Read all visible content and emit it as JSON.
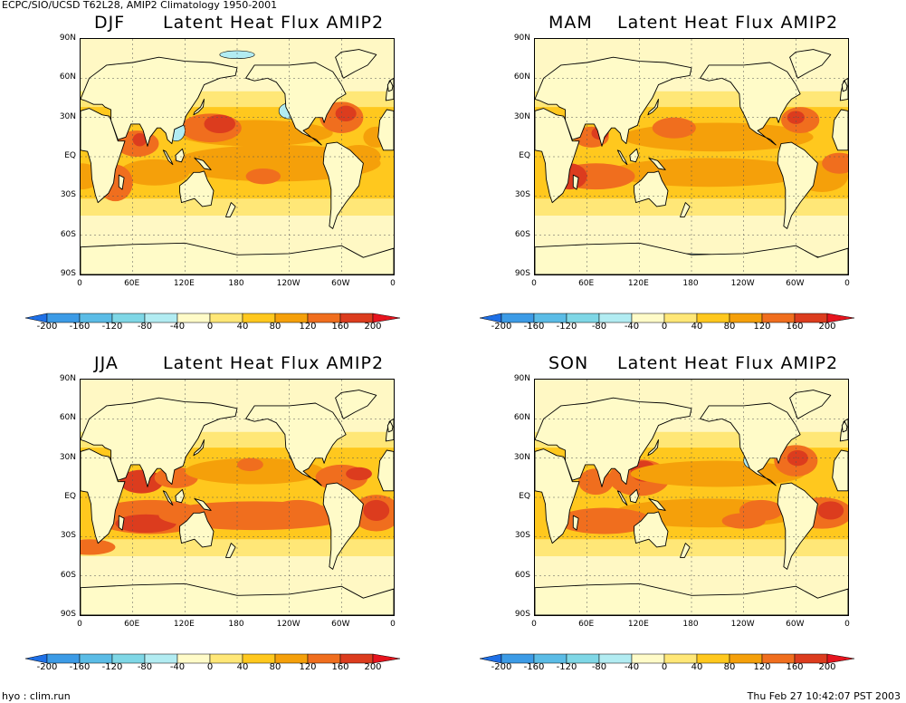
{
  "header": {
    "title": "ECPC/SIO/UCSD T62L28, AMIP2 Climatology 1950-2001"
  },
  "panels": [
    {
      "season": "DJF",
      "name": "Latent Heat Flux  AMIP2",
      "variant": 0
    },
    {
      "season": "MAM",
      "name": "Latent Heat Flux  AMIP2",
      "variant": 1
    },
    {
      "season": "JJA",
      "name": "Latent Heat Flux  AMIP2",
      "variant": 2
    },
    {
      "season": "SON",
      "name": "Latent Heat Flux  AMIP2",
      "variant": 3
    }
  ],
  "axes": {
    "lat_labels": [
      "90N",
      "60N",
      "30N",
      "EQ",
      "30S",
      "60S",
      "90S"
    ],
    "lon_labels": [
      "0",
      "60E",
      "120E",
      "180",
      "120W",
      "60W",
      "0"
    ]
  },
  "colorbar": {
    "labels": [
      "-200",
      "-160",
      "-120",
      "-80",
      "-40",
      "0",
      "40",
      "80",
      "120",
      "160",
      "200"
    ],
    "colors": [
      "#1e6fe6",
      "#3c9be6",
      "#5bbce6",
      "#7fd7e6",
      "#b2ecf2",
      "#fffbc8",
      "#ffe777",
      "#ffc81e",
      "#f5a00a",
      "#f06e1e",
      "#dc3c1e",
      "#e6141e"
    ]
  },
  "colors": {
    "land": "#fffbc8",
    "ocean_low": "#ffe777",
    "ocean_mid": "#ffc81e",
    "ocean_high": "#f5a00a",
    "ocean_vhigh": "#f06e1e",
    "ocean_max": "#dc3c1e",
    "negative": "#b2ecf2"
  },
  "footer": {
    "left": "hyo : clim.run",
    "right": "Thu Feb 27 10:42:07 PST 2003"
  }
}
